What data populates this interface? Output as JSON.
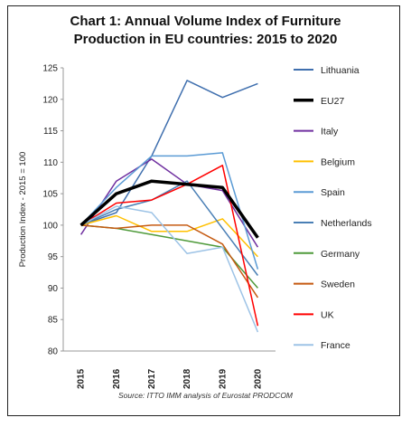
{
  "chart_data": {
    "type": "line",
    "title_line1": "Chart 1: Annual Volume Index of Furniture",
    "title_line2": "Production in EU countries: 2015 to 2020",
    "ylabel": "Production Index - 2015 = 100",
    "source": "Source: ITTO IMM analysis of Eurostat PRODCOM",
    "x": [
      "2015",
      "2016",
      "2017",
      "2018",
      "2019",
      "2020"
    ],
    "y_ticks": [
      "80",
      "85",
      "90",
      "95",
      "100",
      "105",
      "110",
      "115",
      "120",
      "125"
    ],
    "ylim": [
      80,
      125
    ],
    "grid": false,
    "legend_position": "right",
    "series": [
      {
        "name": "Lithuania",
        "color": "#3f6fae",
        "width": 1.5,
        "values": [
          100,
          102,
          111,
          123,
          120.3,
          122.5
        ]
      },
      {
        "name": "EU27",
        "color": "#000000",
        "width": 3.5,
        "values": [
          100,
          105,
          107,
          106.5,
          106,
          98
        ]
      },
      {
        "name": "Italy",
        "color": "#7030a0",
        "width": 1.5,
        "values": [
          98.5,
          107,
          110.5,
          106.5,
          105.5,
          96.5
        ]
      },
      {
        "name": "Belgium",
        "color": "#ffc000",
        "width": 1.5,
        "values": [
          100,
          101.5,
          99,
          99,
          101,
          95
        ]
      },
      {
        "name": "Spain",
        "color": "#5b9bd5",
        "width": 1.5,
        "values": [
          100,
          106,
          111,
          111,
          111.5,
          93
        ]
      },
      {
        "name": "Netherlands",
        "color": "#4a7fb5",
        "width": 1.5,
        "values": [
          100,
          102.5,
          104,
          107,
          99.5,
          92
        ]
      },
      {
        "name": "Germany",
        "color": "#4e9a3a",
        "width": 1.5,
        "values": [
          100,
          99.5,
          98.5,
          97.5,
          96.5,
          90
        ]
      },
      {
        "name": "Sweden",
        "color": "#c55a11",
        "width": 1.5,
        "values": [
          100,
          99.5,
          100,
          100,
          97,
          88.5
        ]
      },
      {
        "name": "UK",
        "color": "#ff0000",
        "width": 1.5,
        "values": [
          100,
          103.5,
          104,
          106.5,
          109.5,
          84
        ]
      },
      {
        "name": "France",
        "color": "#9dc3e6",
        "width": 1.5,
        "values": [
          100,
          103,
          102,
          95.5,
          96.5,
          83
        ]
      }
    ]
  }
}
